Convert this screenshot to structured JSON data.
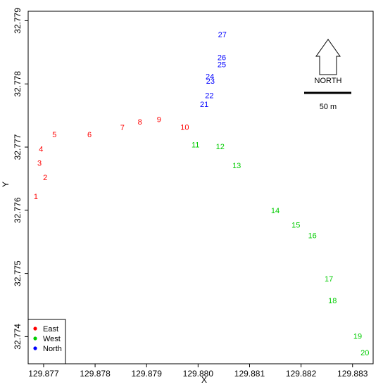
{
  "chart_data": {
    "type": "scatter",
    "title": "",
    "xlabel": "X",
    "ylabel": "Y",
    "xlim": [
      129.8767,
      129.8834
    ],
    "ylim": [
      32.77357,
      32.77915
    ],
    "xticks": [
      "129.877",
      "129.878",
      "129.879",
      "129.880",
      "129.881",
      "129.882",
      "129.883"
    ],
    "yticks": [
      "32.774",
      "32.775",
      "32.776",
      "32.777",
      "32.778",
      "32.779"
    ],
    "grid": false,
    "legend_position": "bottom-left",
    "series": [
      {
        "name": "East",
        "color": "#ff0000",
        "points": [
          {
            "label": "1",
            "x": 129.87685,
            "y": 32.77622
          },
          {
            "label": "2",
            "x": 129.87703,
            "y": 32.77652
          },
          {
            "label": "3",
            "x": 129.87692,
            "y": 32.77675
          },
          {
            "label": "4",
            "x": 129.87695,
            "y": 32.77697
          },
          {
            "label": "5",
            "x": 129.87721,
            "y": 32.7772
          },
          {
            "label": "6",
            "x": 129.87789,
            "y": 32.7772
          },
          {
            "label": "7",
            "x": 129.87853,
            "y": 32.77731
          },
          {
            "label": "8",
            "x": 129.87887,
            "y": 32.7774
          },
          {
            "label": "9",
            "x": 129.87924,
            "y": 32.77744
          },
          {
            "label": "10",
            "x": 129.87974,
            "y": 32.77732
          }
        ]
      },
      {
        "name": "West",
        "color": "#00cc00",
        "points": [
          {
            "label": "11",
            "x": 129.87995,
            "y": 32.77704
          },
          {
            "label": "12",
            "x": 129.88043,
            "y": 32.77701
          },
          {
            "label": "13",
            "x": 129.88075,
            "y": 32.77671
          },
          {
            "label": "14",
            "x": 129.8815,
            "y": 32.776
          },
          {
            "label": "15",
            "x": 129.8819,
            "y": 32.77577
          },
          {
            "label": "16",
            "x": 129.88222,
            "y": 32.7756
          },
          {
            "label": "17",
            "x": 129.88254,
            "y": 32.77492
          },
          {
            "label": "18",
            "x": 129.88261,
            "y": 32.77457
          },
          {
            "label": "19",
            "x": 129.8831,
            "y": 32.77401
          },
          {
            "label": "20",
            "x": 129.88324,
            "y": 32.77375
          }
        ]
      },
      {
        "name": "North",
        "color": "#0000ff",
        "points": [
          {
            "label": "21",
            "x": 129.88012,
            "y": 32.77768
          },
          {
            "label": "22",
            "x": 129.88022,
            "y": 32.77782
          },
          {
            "label": "23",
            "x": 129.88024,
            "y": 32.77805
          },
          {
            "label": "24",
            "x": 129.88023,
            "y": 32.77812
          },
          {
            "label": "25",
            "x": 129.88046,
            "y": 32.77831
          },
          {
            "label": "26",
            "x": 129.88046,
            "y": 32.77842
          },
          {
            "label": "27",
            "x": 129.88047,
            "y": 32.77878
          }
        ]
      }
    ],
    "annotations": {
      "north_arrow_label": "NORTH",
      "scale_bar_label": "50 m"
    }
  }
}
